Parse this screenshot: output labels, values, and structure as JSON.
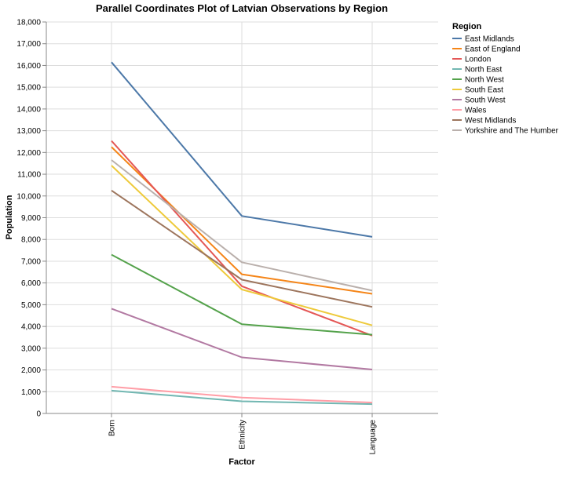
{
  "chart_data": {
    "type": "line",
    "title": "Parallel Coordinates Plot of Latvian Observations by Region",
    "xlabel": "Factor",
    "ylabel": "Population",
    "categories": [
      "Born",
      "Ethnicity",
      "Language"
    ],
    "ylim": [
      0,
      18000
    ],
    "y_ticks": [
      "0",
      "1,000",
      "2,000",
      "3,000",
      "4,000",
      "5,000",
      "6,000",
      "7,000",
      "8,000",
      "9,000",
      "10,000",
      "11,000",
      "12,000",
      "13,000",
      "14,000",
      "15,000",
      "16,000",
      "17,000",
      "18,000"
    ],
    "grid": true,
    "legend_title": "Region",
    "legend_position": "right",
    "series": [
      {
        "name": "East Midlands",
        "color": "#4c78a8",
        "values": [
          16150,
          9080,
          8120
        ]
      },
      {
        "name": "East of England",
        "color": "#f58518",
        "values": [
          12250,
          6400,
          5500
        ]
      },
      {
        "name": "London",
        "color": "#e45756",
        "values": [
          12530,
          5850,
          3580
        ]
      },
      {
        "name": "North East",
        "color": "#72b7b2",
        "values": [
          1050,
          560,
          430
        ]
      },
      {
        "name": "North West",
        "color": "#54a24b",
        "values": [
          7300,
          4100,
          3620
        ]
      },
      {
        "name": "South East",
        "color": "#eeca3b",
        "values": [
          11400,
          5700,
          4050
        ]
      },
      {
        "name": "South West",
        "color": "#b279a2",
        "values": [
          4820,
          2580,
          2020
        ]
      },
      {
        "name": "Wales",
        "color": "#ff9da6",
        "values": [
          1230,
          730,
          500
        ]
      },
      {
        "name": "West Midlands",
        "color": "#9d755d",
        "values": [
          10250,
          6150,
          4900
        ]
      },
      {
        "name": "Yorkshire and The Humber",
        "color": "#bab0ac",
        "values": [
          11650,
          6950,
          5650
        ]
      }
    ]
  }
}
